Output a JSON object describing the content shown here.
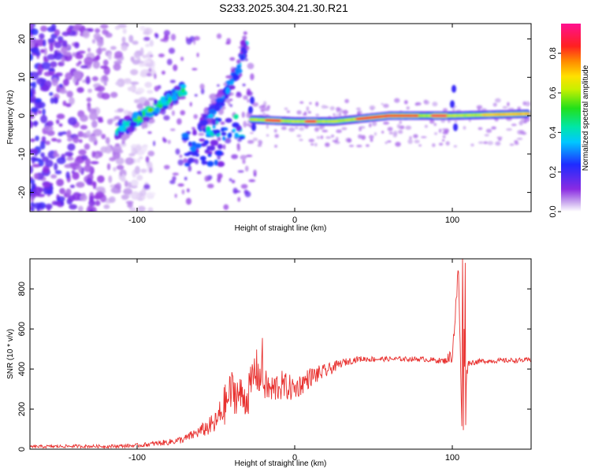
{
  "title": "S233.2025.304.21.30.R21",
  "colors": {
    "snr_line": "#e8312f",
    "axis": "#000000",
    "background": "#ffffff"
  },
  "chart_data": [
    {
      "type": "heatmap",
      "name": "spectrogram",
      "xlabel": "Height of straight line (km)",
      "ylabel": "Frequency (Hz)",
      "xlim": [
        -168,
        150
      ],
      "ylim": [
        -25,
        24
      ],
      "xticks": [
        -100,
        0,
        100
      ],
      "xtick_labels": [
        "-100",
        "0",
        "100"
      ],
      "yticks": [
        -20,
        -10,
        0,
        10,
        20
      ],
      "ytick_labels": [
        "-20",
        "-10",
        "0",
        "10",
        "20"
      ],
      "colorbar": {
        "label": "Normalized spectral amplitude",
        "range": [
          0.0,
          0.95
        ],
        "ticks": [
          0.0,
          0.2,
          0.4,
          0.6,
          0.8
        ],
        "tick_labels": [
          "0.0",
          "0.2",
          "0.4",
          "0.6",
          "0.8"
        ],
        "colormap": "rainbow (violet-blue-cyan-green-yellow-orange-red-magenta)"
      },
      "features": [
        {
          "description": "dispersive rising streak",
          "points": [
            [
              -113,
              -4
            ],
            [
              -100,
              -1
            ],
            [
              -85,
              3
            ],
            [
              -70,
              7
            ]
          ],
          "peak_amplitude": 0.5
        },
        {
          "description": "second rising streak",
          "points": [
            [
              -60,
              -3
            ],
            [
              -45,
              5
            ],
            [
              -35,
              13
            ],
            [
              -31,
              20
            ]
          ],
          "peak_amplitude": 0.35
        },
        {
          "description": "steady tone near 0 Hz",
          "points": [
            [
              -27,
              -1
            ],
            [
              0,
              -1.5
            ],
            [
              25,
              -1.5
            ],
            [
              60,
              0
            ],
            [
              100,
              0
            ],
            [
              148,
              0.5
            ]
          ],
          "peak_amplitude": 0.9
        },
        {
          "description": "broadband noise region",
          "x_range": [
            -168,
            -100
          ],
          "freq_range": [
            -25,
            24
          ],
          "peak_amplitude": 0.25
        }
      ]
    },
    {
      "type": "line",
      "name": "snr",
      "xlabel": "Height of straight line (km)",
      "ylabel": "SNR (10 * v/v)",
      "xlim": [
        -168,
        150
      ],
      "ylim": [
        0,
        950
      ],
      "xticks": [
        -100,
        0,
        100
      ],
      "xtick_labels": [
        "-100",
        "0",
        "100"
      ],
      "yticks": [
        0,
        200,
        400,
        600,
        800
      ],
      "ytick_labels": [
        "0",
        "200",
        "400",
        "600",
        "800"
      ],
      "series": [
        {
          "name": "SNR",
          "x": [
            -168,
            -140,
            -120,
            -100,
            -80,
            -70,
            -60,
            -50,
            -45,
            -40,
            -35,
            -30,
            -25,
            -20,
            -15,
            -10,
            -5,
            0,
            10,
            20,
            30,
            40,
            60,
            80,
            95,
            100,
            104,
            106,
            107,
            108,
            110,
            120,
            150
          ],
          "y": [
            12,
            15,
            14,
            18,
            35,
            50,
            90,
            130,
            210,
            290,
            270,
            250,
            400,
            330,
            290,
            320,
            310,
            300,
            360,
            390,
            430,
            450,
            450,
            450,
            440,
            470,
            900,
            100,
            920,
            300,
            430,
            440,
            445
          ],
          "spread": [
            8,
            8,
            8,
            10,
            15,
            20,
            30,
            60,
            100,
            110,
            100,
            90,
            120,
            80,
            80,
            80,
            70,
            60,
            50,
            35,
            20,
            15,
            12,
            12,
            15,
            40,
            60,
            60,
            60,
            60,
            15,
            12,
            12
          ]
        }
      ]
    }
  ]
}
